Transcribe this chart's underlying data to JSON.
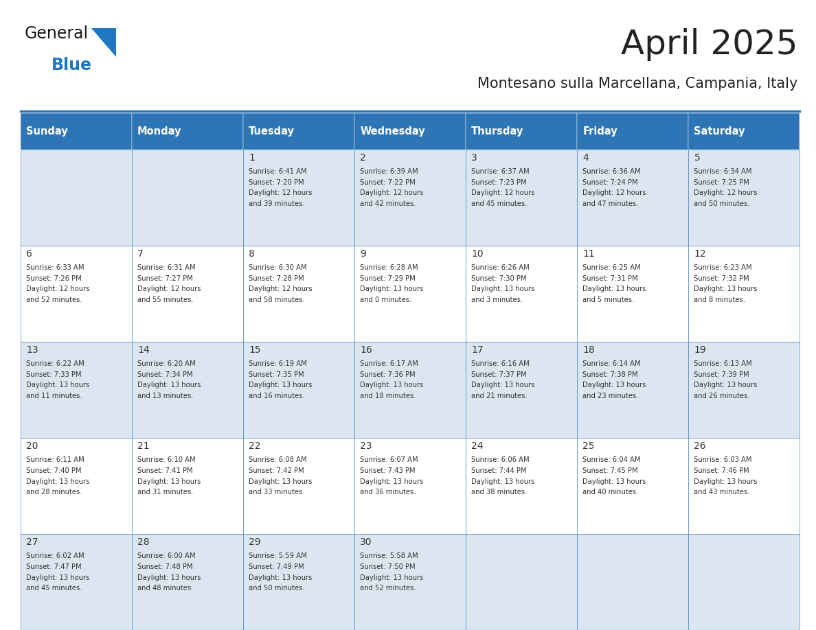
{
  "title": "April 2025",
  "subtitle": "Montesano sulla Marcellana, Campania, Italy",
  "days_of_week": [
    "Sunday",
    "Monday",
    "Tuesday",
    "Wednesday",
    "Thursday",
    "Friday",
    "Saturday"
  ],
  "header_bg": "#2e75b6",
  "header_text": "#ffffff",
  "row_bg_even": "#dce6f1",
  "row_bg_odd": "#ffffff",
  "cell_text_color": "#333333",
  "border_color": "#2e75b6",
  "title_color": "#222222",
  "subtitle_color": "#222222",
  "logo_general_color": "#1a1a1a",
  "logo_blue_color": "#2077c2",
  "logo_triangle_color": "#2077c2",
  "calendar": [
    [
      {
        "day": "",
        "sunrise": "",
        "sunset": "",
        "daylight": ""
      },
      {
        "day": "",
        "sunrise": "",
        "sunset": "",
        "daylight": ""
      },
      {
        "day": "1",
        "sunrise": "6:41 AM",
        "sunset": "7:20 PM",
        "daylight": "12 hours and 39 minutes."
      },
      {
        "day": "2",
        "sunrise": "6:39 AM",
        "sunset": "7:22 PM",
        "daylight": "12 hours and 42 minutes."
      },
      {
        "day": "3",
        "sunrise": "6:37 AM",
        "sunset": "7:23 PM",
        "daylight": "12 hours and 45 minutes."
      },
      {
        "day": "4",
        "sunrise": "6:36 AM",
        "sunset": "7:24 PM",
        "daylight": "12 hours and 47 minutes."
      },
      {
        "day": "5",
        "sunrise": "6:34 AM",
        "sunset": "7:25 PM",
        "daylight": "12 hours and 50 minutes."
      }
    ],
    [
      {
        "day": "6",
        "sunrise": "6:33 AM",
        "sunset": "7:26 PM",
        "daylight": "12 hours and 52 minutes."
      },
      {
        "day": "7",
        "sunrise": "6:31 AM",
        "sunset": "7:27 PM",
        "daylight": "12 hours and 55 minutes."
      },
      {
        "day": "8",
        "sunrise": "6:30 AM",
        "sunset": "7:28 PM",
        "daylight": "12 hours and 58 minutes."
      },
      {
        "day": "9",
        "sunrise": "6:28 AM",
        "sunset": "7:29 PM",
        "daylight": "13 hours and 0 minutes."
      },
      {
        "day": "10",
        "sunrise": "6:26 AM",
        "sunset": "7:30 PM",
        "daylight": "13 hours and 3 minutes."
      },
      {
        "day": "11",
        "sunrise": "6:25 AM",
        "sunset": "7:31 PM",
        "daylight": "13 hours and 5 minutes."
      },
      {
        "day": "12",
        "sunrise": "6:23 AM",
        "sunset": "7:32 PM",
        "daylight": "13 hours and 8 minutes."
      }
    ],
    [
      {
        "day": "13",
        "sunrise": "6:22 AM",
        "sunset": "7:33 PM",
        "daylight": "13 hours and 11 minutes."
      },
      {
        "day": "14",
        "sunrise": "6:20 AM",
        "sunset": "7:34 PM",
        "daylight": "13 hours and 13 minutes."
      },
      {
        "day": "15",
        "sunrise": "6:19 AM",
        "sunset": "7:35 PM",
        "daylight": "13 hours and 16 minutes."
      },
      {
        "day": "16",
        "sunrise": "6:17 AM",
        "sunset": "7:36 PM",
        "daylight": "13 hours and 18 minutes."
      },
      {
        "day": "17",
        "sunrise": "6:16 AM",
        "sunset": "7:37 PM",
        "daylight": "13 hours and 21 minutes."
      },
      {
        "day": "18",
        "sunrise": "6:14 AM",
        "sunset": "7:38 PM",
        "daylight": "13 hours and 23 minutes."
      },
      {
        "day": "19",
        "sunrise": "6:13 AM",
        "sunset": "7:39 PM",
        "daylight": "13 hours and 26 minutes."
      }
    ],
    [
      {
        "day": "20",
        "sunrise": "6:11 AM",
        "sunset": "7:40 PM",
        "daylight": "13 hours and 28 minutes."
      },
      {
        "day": "21",
        "sunrise": "6:10 AM",
        "sunset": "7:41 PM",
        "daylight": "13 hours and 31 minutes."
      },
      {
        "day": "22",
        "sunrise": "6:08 AM",
        "sunset": "7:42 PM",
        "daylight": "13 hours and 33 minutes."
      },
      {
        "day": "23",
        "sunrise": "6:07 AM",
        "sunset": "7:43 PM",
        "daylight": "13 hours and 36 minutes."
      },
      {
        "day": "24",
        "sunrise": "6:06 AM",
        "sunset": "7:44 PM",
        "daylight": "13 hours and 38 minutes."
      },
      {
        "day": "25",
        "sunrise": "6:04 AM",
        "sunset": "7:45 PM",
        "daylight": "13 hours and 40 minutes."
      },
      {
        "day": "26",
        "sunrise": "6:03 AM",
        "sunset": "7:46 PM",
        "daylight": "13 hours and 43 minutes."
      }
    ],
    [
      {
        "day": "27",
        "sunrise": "6:02 AM",
        "sunset": "7:47 PM",
        "daylight": "13 hours and 45 minutes."
      },
      {
        "day": "28",
        "sunrise": "6:00 AM",
        "sunset": "7:48 PM",
        "daylight": "13 hours and 48 minutes."
      },
      {
        "day": "29",
        "sunrise": "5:59 AM",
        "sunset": "7:49 PM",
        "daylight": "13 hours and 50 minutes."
      },
      {
        "day": "30",
        "sunrise": "5:58 AM",
        "sunset": "7:50 PM",
        "daylight": "13 hours and 52 minutes."
      },
      {
        "day": "",
        "sunrise": "",
        "sunset": "",
        "daylight": ""
      },
      {
        "day": "",
        "sunrise": "",
        "sunset": "",
        "daylight": ""
      },
      {
        "day": "",
        "sunrise": "",
        "sunset": "",
        "daylight": ""
      }
    ]
  ]
}
